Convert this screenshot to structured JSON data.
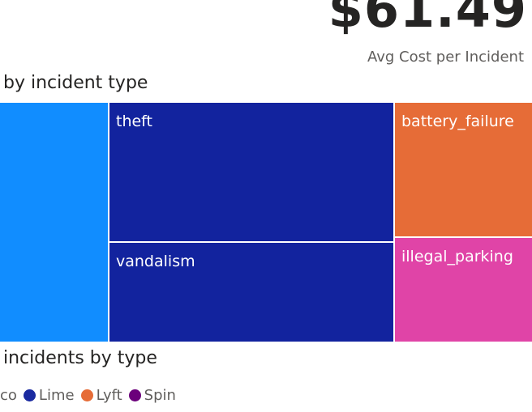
{
  "kpi": {
    "value": "$61.49",
    "label": "Avg Cost per Incident"
  },
  "visual1": {
    "title": "by incident type"
  },
  "visual2": {
    "title": "incidents by type"
  },
  "legend": [
    {
      "label": "co",
      "color": null
    },
    {
      "label": "Lime",
      "color": "#1a2aa0"
    },
    {
      "label": "Lyft",
      "color": "#e66c37"
    },
    {
      "label": "Spin",
      "color": "#6b007b"
    }
  ],
  "chart_data": {
    "type": "treemap",
    "groups": [
      {
        "color": "#118dff",
        "items": [
          {
            "label": "",
            "color": "#118dff"
          }
        ]
      },
      {
        "color": "#12239e",
        "items": [
          {
            "label": "theft",
            "color": "#12239e"
          },
          {
            "label": "vandalism",
            "color": "#12239e"
          }
        ]
      },
      {
        "color": "#e66c37",
        "items": [
          {
            "label": "battery_failure",
            "color": "#e66c37"
          },
          {
            "label": "illegal_parking",
            "color": "#e044a7"
          }
        ]
      }
    ]
  }
}
